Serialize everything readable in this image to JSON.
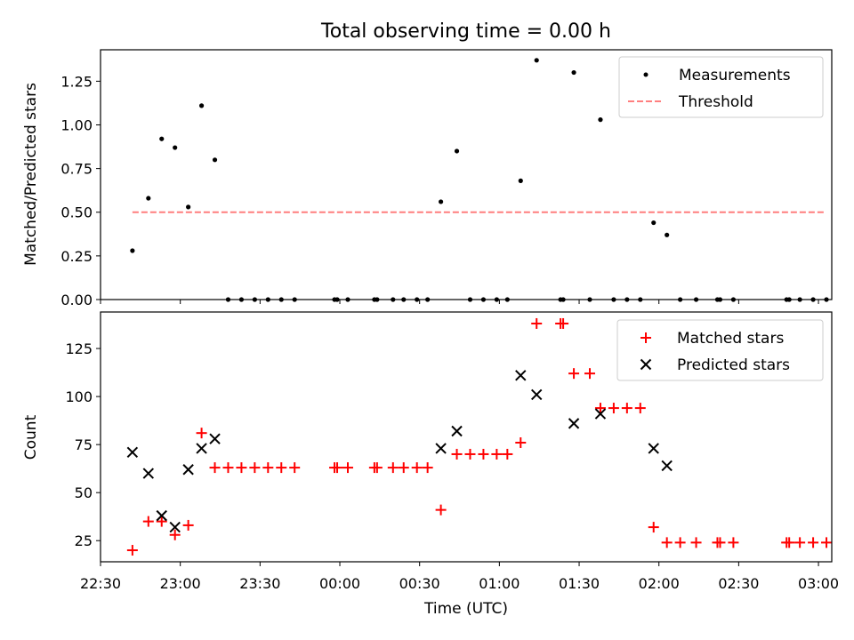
{
  "chart_data": [
    {
      "type": "scatter",
      "title": "Total observing time = 0.00 h",
      "ylabel": "Matched/Predicted stars",
      "xlim": [
        "22:30",
        "03:05"
      ],
      "ylim": [
        0,
        1.43
      ],
      "yticks": [
        0.0,
        0.25,
        0.5,
        0.75,
        1.0,
        1.25
      ],
      "ytick_labels": [
        "0.00",
        "0.25",
        "0.50",
        "0.75",
        "1.00",
        "1.25"
      ],
      "grid": false,
      "legend": "top-right",
      "colors": {
        "measurements": "#000000",
        "threshold": "#ff7f7f"
      },
      "series": [
        {
          "name": "Measurements",
          "marker": "dot",
          "points": [
            [
              "22:42",
              0.28
            ],
            [
              "22:48",
              0.58
            ],
            [
              "22:53",
              0.92
            ],
            [
              "22:58",
              0.87
            ],
            [
              "23:03",
              0.53
            ],
            [
              "23:08",
              1.11
            ],
            [
              "23:13",
              0.8
            ],
            [
              "23:18",
              0.0
            ],
            [
              "23:23",
              0.0
            ],
            [
              "23:28",
              0.0
            ],
            [
              "23:33",
              0.0
            ],
            [
              "23:38",
              0.0
            ],
            [
              "23:43",
              0.0
            ],
            [
              "23:58",
              0.0
            ],
            [
              "23:59",
              0.0
            ],
            [
              "00:03",
              0.0
            ],
            [
              "00:13",
              0.0
            ],
            [
              "00:14",
              0.0
            ],
            [
              "00:20",
              0.0
            ],
            [
              "00:24",
              0.0
            ],
            [
              "00:29",
              0.0
            ],
            [
              "00:33",
              0.0
            ],
            [
              "00:38",
              0.56
            ],
            [
              "00:44",
              0.85
            ],
            [
              "00:49",
              0.0
            ],
            [
              "00:54",
              0.0
            ],
            [
              "00:59",
              0.0
            ],
            [
              "01:03",
              0.0
            ],
            [
              "01:08",
              0.68
            ],
            [
              "01:14",
              1.37
            ],
            [
              "01:23",
              0.0
            ],
            [
              "01:24",
              0.0
            ],
            [
              "01:28",
              1.3
            ],
            [
              "01:38",
              1.03
            ],
            [
              "01:34",
              0.0
            ],
            [
              "01:43",
              0.0
            ],
            [
              "01:48",
              0.0
            ],
            [
              "01:53",
              0.0
            ],
            [
              "01:58",
              0.44
            ],
            [
              "02:03",
              0.37
            ],
            [
              "02:08",
              0.0
            ],
            [
              "02:14",
              0.0
            ],
            [
              "02:22",
              0.0
            ],
            [
              "02:23",
              0.0
            ],
            [
              "02:28",
              0.0
            ],
            [
              "02:48",
              0.0
            ],
            [
              "02:49",
              0.0
            ],
            [
              "02:53",
              0.0
            ],
            [
              "02:58",
              0.0
            ],
            [
              "03:03",
              0.0
            ]
          ]
        },
        {
          "name": "Threshold",
          "style": "dashed",
          "points": [
            [
              "22:42",
              0.5
            ],
            [
              "03:02",
              0.5
            ]
          ]
        }
      ]
    },
    {
      "type": "scatter",
      "xlabel": "Time (UTC)",
      "ylabel": "Count",
      "xlim": [
        "22:30",
        "03:05"
      ],
      "ylim": [
        14,
        144
      ],
      "xticks": [
        "22:30",
        "23:00",
        "23:30",
        "00:00",
        "00:30",
        "01:00",
        "01:30",
        "02:00",
        "02:30",
        "03:00"
      ],
      "yticks": [
        25,
        50,
        75,
        100,
        125
      ],
      "ytick_labels": [
        "25",
        "50",
        "75",
        "100",
        "125"
      ],
      "grid": false,
      "legend": "top-right",
      "colors": {
        "matched": "#ff0000",
        "predicted": "#000000"
      },
      "series": [
        {
          "name": "Matched stars",
          "marker": "plus",
          "points": [
            [
              "22:42",
              20
            ],
            [
              "22:48",
              35
            ],
            [
              "22:53",
              35
            ],
            [
              "22:58",
              28
            ],
            [
              "23:03",
              33
            ],
            [
              "23:08",
              81
            ],
            [
              "23:13",
              63
            ],
            [
              "23:18",
              63
            ],
            [
              "23:23",
              63
            ],
            [
              "23:28",
              63
            ],
            [
              "23:33",
              63
            ],
            [
              "23:38",
              63
            ],
            [
              "23:43",
              63
            ],
            [
              "23:58",
              63
            ],
            [
              "23:59",
              63
            ],
            [
              "00:03",
              63
            ],
            [
              "00:13",
              63
            ],
            [
              "00:14",
              63
            ],
            [
              "00:20",
              63
            ],
            [
              "00:24",
              63
            ],
            [
              "00:29",
              63
            ],
            [
              "00:33",
              63
            ],
            [
              "00:38",
              41
            ],
            [
              "00:44",
              70
            ],
            [
              "00:49",
              70
            ],
            [
              "00:54",
              70
            ],
            [
              "00:59",
              70
            ],
            [
              "01:03",
              70
            ],
            [
              "01:08",
              76
            ],
            [
              "01:14",
              138
            ],
            [
              "01:23",
              138
            ],
            [
              "01:24",
              138
            ],
            [
              "01:28",
              112
            ],
            [
              "01:34",
              112
            ],
            [
              "01:38",
              94
            ],
            [
              "01:43",
              94
            ],
            [
              "01:48",
              94
            ],
            [
              "01:53",
              94
            ],
            [
              "01:58",
              32
            ],
            [
              "02:03",
              24
            ],
            [
              "02:08",
              24
            ],
            [
              "02:14",
              24
            ],
            [
              "02:22",
              24
            ],
            [
              "02:23",
              24
            ],
            [
              "02:28",
              24
            ],
            [
              "02:48",
              24
            ],
            [
              "02:49",
              24
            ],
            [
              "02:53",
              24
            ],
            [
              "02:58",
              24
            ],
            [
              "03:03",
              24
            ]
          ]
        },
        {
          "name": "Predicted stars",
          "marker": "x",
          "points": [
            [
              "22:42",
              71
            ],
            [
              "22:48",
              60
            ],
            [
              "22:53",
              38
            ],
            [
              "22:58",
              32
            ],
            [
              "23:03",
              62
            ],
            [
              "23:08",
              73
            ],
            [
              "23:13",
              78
            ],
            [
              "00:38",
              73
            ],
            [
              "00:44",
              82
            ],
            [
              "01:08",
              111
            ],
            [
              "01:14",
              101
            ],
            [
              "01:28",
              86
            ],
            [
              "01:38",
              91
            ],
            [
              "01:58",
              73
            ],
            [
              "02:03",
              64
            ]
          ]
        }
      ]
    }
  ]
}
